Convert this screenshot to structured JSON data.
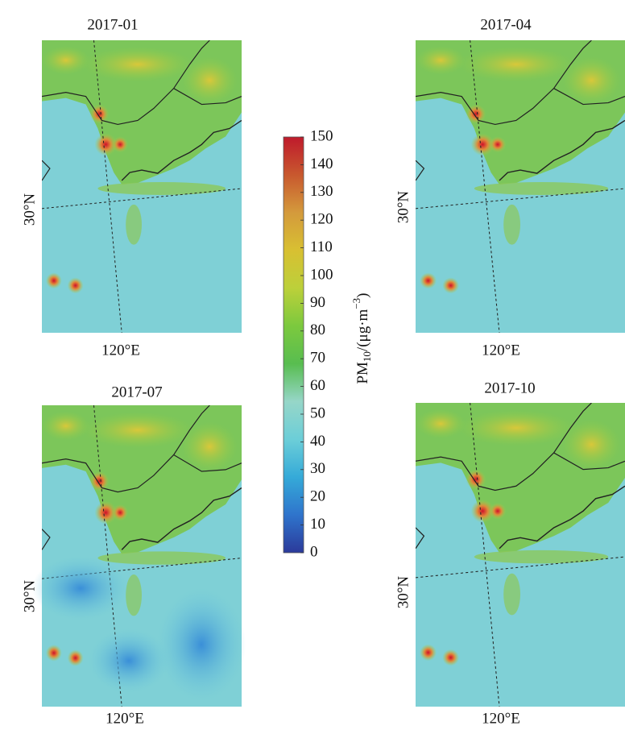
{
  "panels": [
    {
      "title": "2017-01",
      "lat_label": "30°N",
      "lon_label": "120°E"
    },
    {
      "title": "2017-04",
      "lat_label": "30°N",
      "lon_label": "120°E"
    },
    {
      "title": "2017-07",
      "lat_label": "30°N",
      "lon_label": "120°E"
    },
    {
      "title": "2017-10",
      "lat_label": "30°N",
      "lon_label": "120°E"
    }
  ],
  "colorbar": {
    "label_parts": [
      "PM",
      "10",
      "/(μg·m",
      "−3",
      ")"
    ],
    "lim": [
      0,
      150
    ],
    "ticks": [
      0,
      10,
      20,
      30,
      40,
      50,
      60,
      70,
      80,
      90,
      100,
      110,
      120,
      130,
      140,
      150
    ],
    "colors": [
      "#2b3a9a",
      "#2f74cc",
      "#35aad8",
      "#6cced8",
      "#96d6c8",
      "#58bd50",
      "#7cc93e",
      "#bcd03a",
      "#d8c032",
      "#d49a3c",
      "#c8582e",
      "#bf1a2c"
    ]
  }
}
